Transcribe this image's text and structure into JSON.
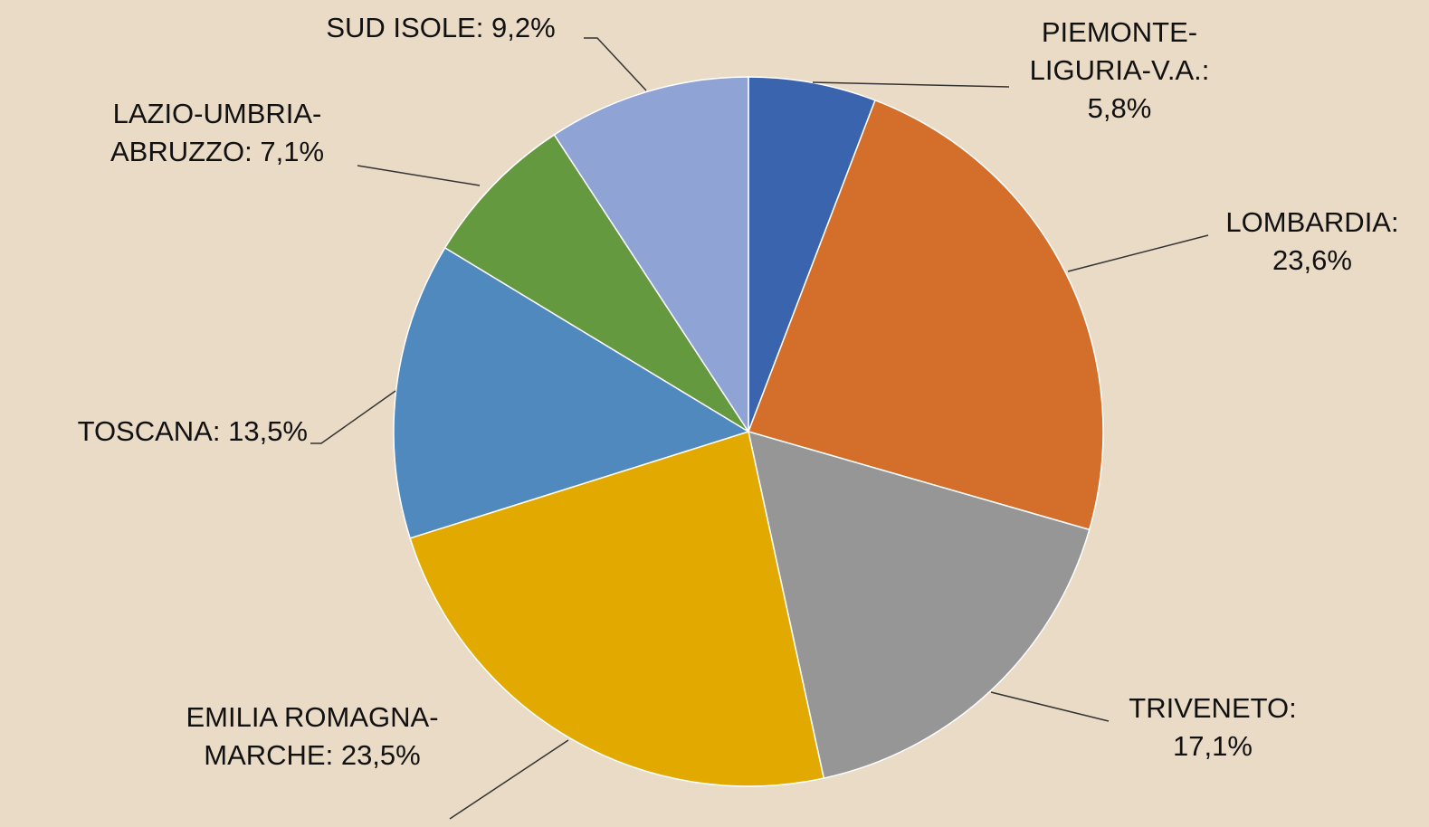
{
  "chart_data": {
    "type": "pie",
    "categories": [
      "PIEMONTE-LIGURIA-V.A.:",
      "LOMBARDIA:",
      "TRIVENETO:",
      "EMILIA ROMAGNA-MARCHE:",
      "TOSCANA:",
      "LAZIO-UMBRIA-ABRUZZO:",
      "SUD ISOLE:"
    ],
    "values": [
      5.8,
      23.6,
      17.1,
      23.5,
      13.5,
      7.1,
      9.2
    ],
    "value_labels": [
      "5,8%",
      "23,6%",
      "17,1%",
      "23,5%",
      "13,5%",
      "7,1%",
      "9,2%"
    ],
    "colors": [
      "#3a64ad",
      "#d46e2b",
      "#969696",
      "#e2aa00",
      "#4f89bd",
      "#64993f",
      "#8fa3d5"
    ]
  }
}
